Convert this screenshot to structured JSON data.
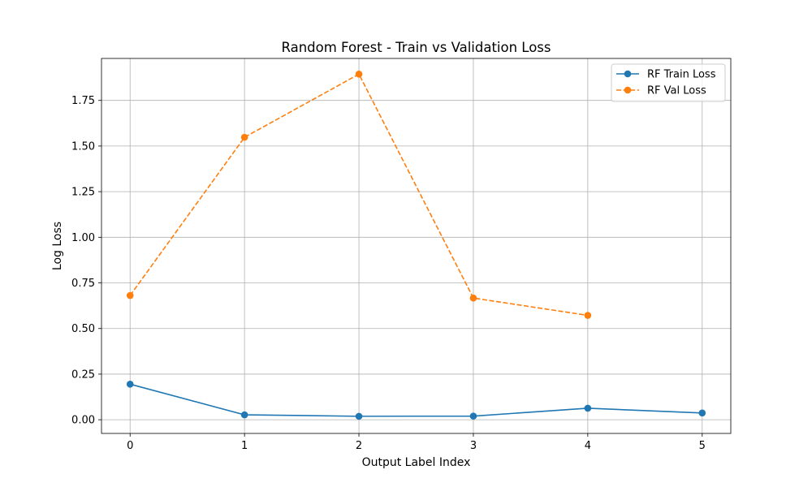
{
  "chart_data": {
    "type": "line",
    "title": "Random Forest - Train vs Validation Loss",
    "xlabel": "Output Label Index",
    "ylabel": "Log Loss",
    "x": [
      0,
      1,
      2,
      3,
      4,
      5
    ],
    "xticks": [
      "0",
      "1",
      "2",
      "3",
      "4",
      "5"
    ],
    "yticks": [
      "0.00",
      "0.25",
      "0.50",
      "0.75",
      "1.00",
      "1.25",
      "1.50",
      "1.75"
    ],
    "xlim": [
      -0.25,
      5.25
    ],
    "ylim": [
      -0.075,
      1.98
    ],
    "grid": true,
    "legend_position": "top-right",
    "series": [
      {
        "name": "RF Train Loss",
        "color": "#1f77b4",
        "linestyle": "solid",
        "marker": "circle",
        "x": [
          0,
          1,
          2,
          3,
          4,
          5
        ],
        "values": [
          0.195,
          0.027,
          0.019,
          0.02,
          0.063,
          0.037
        ]
      },
      {
        "name": "RF Val Loss",
        "color": "#ff7f0e",
        "linestyle": "dashed",
        "marker": "circle",
        "x": [
          0,
          1,
          2,
          3,
          4
        ],
        "values": [
          0.681,
          1.548,
          1.894,
          0.667,
          0.572
        ]
      }
    ]
  }
}
